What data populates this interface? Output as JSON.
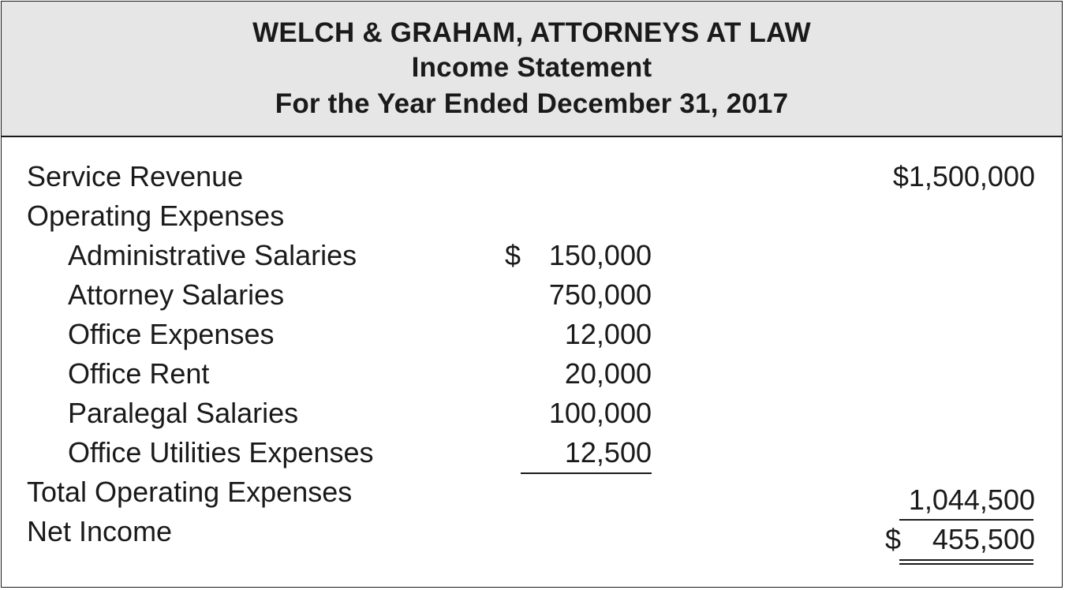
{
  "header": {
    "company": "WELCH & GRAHAM, ATTORNEYS AT LAW",
    "statement": "Income Statement",
    "period": "For the Year Ended December 31, 2017"
  },
  "revenue": {
    "label": "Service Revenue",
    "amount": "$1,500,000"
  },
  "operating_expenses": {
    "label": "Operating Expenses",
    "currency_symbol": "$",
    "items": [
      {
        "label": "Administrative Salaries",
        "amount": "150,000"
      },
      {
        "label": "Attorney Salaries",
        "amount": "750,000"
      },
      {
        "label": "Office Expenses",
        "amount": "12,000"
      },
      {
        "label": "Office Rent",
        "amount": "20,000"
      },
      {
        "label": "Paralegal Salaries",
        "amount": "100,000"
      },
      {
        "label": "Office Utilities Expenses",
        "amount": "12,500"
      }
    ]
  },
  "total_operating_expenses": {
    "label": "Total Operating Expenses",
    "amount": "1,044,500"
  },
  "net_income": {
    "label": "Net Income",
    "currency_symbol": "$",
    "amount": "455,500"
  },
  "colors": {
    "header_background": "#e6e6e6",
    "border": "#1a1a1a",
    "text": "#1a1a1a"
  }
}
